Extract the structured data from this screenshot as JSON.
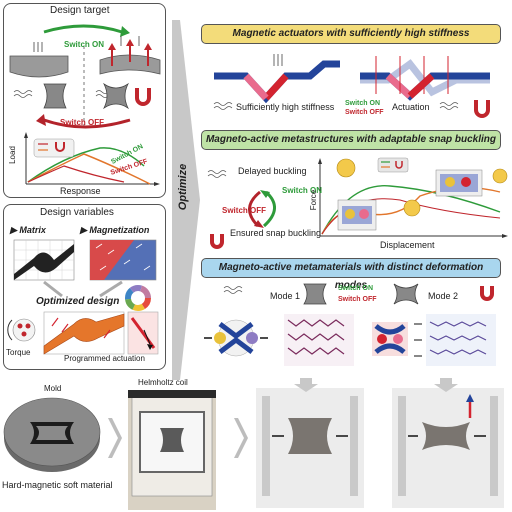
{
  "colors": {
    "accent_yellow": "#f3dc7a",
    "accent_green": "#bfe3a6",
    "accent_blue": "#a9d6ee",
    "magnet_red": "#d3232f",
    "magnet_blue": "#23449a",
    "switch_on": "#2e9b3a",
    "switch_off": "#c0262d",
    "panel_gray": "#7a7a7a"
  },
  "left": {
    "design_target": {
      "title": "Design target",
      "switch_on": "Switch ON",
      "switch_off": "Switch OFF",
      "chart_ylabel": "Load",
      "chart_xlabel": "Response",
      "curve_on": "Switch ON",
      "curve_off": "Switch OFF"
    },
    "design_variables": {
      "title": "Design variables",
      "matrix": "Matrix",
      "magnetization": "Magnetization",
      "optimized": "Optimized design",
      "torque": "Torque",
      "programmed": "Programmed actuation"
    },
    "optimize": "Optimize"
  },
  "right": {
    "sec1": {
      "title": "Magnetic actuators with sufficiently high stiffness",
      "stiffness": "Sufficiently high stiffness",
      "switch_on": "Switch ON",
      "switch_off": "Switch OFF",
      "actuation": "Actuation"
    },
    "sec2": {
      "title": "Magneto-active metastructures with adaptable snap buckling",
      "delayed": "Delayed buckling",
      "ensured": "Ensured snap buckling",
      "switch_on": "Switch ON",
      "switch_off": "Switch OFF",
      "xlabel": "Displacement",
      "ylabel": "Force"
    },
    "sec3": {
      "title": "Magneto-active metamaterials with distinct deformation modes",
      "mode1": "Mode 1",
      "mode2": "Mode 2",
      "switch_on": "Switch ON",
      "switch_off": "Switch OFF"
    }
  },
  "bottom": {
    "mold": "Mold",
    "hard_magnetic": "Hard-magnetic soft material",
    "helmholtz": "Helmholtz coil"
  }
}
